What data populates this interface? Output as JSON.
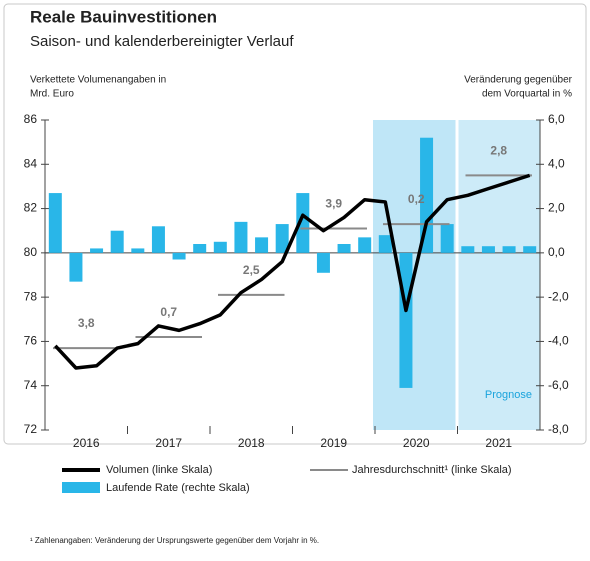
{
  "chart_data": {
    "type": "bar-line",
    "title": "Reale Bauinvestitionen",
    "subtitle": "Saison- und kalenderbereinigter Verlauf",
    "y_axis_label": [
      "Verkettete Volumenangaben in",
      "Mrd. Euro"
    ],
    "y2_axis_label": [
      "Veränderung gegenüber",
      "dem Vorquartal in %"
    ],
    "year_labels": [
      "2016",
      "2017",
      "2018",
      "2019",
      "2020",
      "2021"
    ],
    "categories": [
      null,
      null,
      null,
      null,
      null,
      null,
      null,
      null,
      null,
      null,
      null,
      null,
      null,
      null,
      null,
      null,
      null,
      null,
      null,
      null,
      null,
      null,
      null,
      null
    ],
    "ylim": [
      72,
      86
    ],
    "yticks": [
      72,
      74,
      76,
      78,
      80,
      82,
      84,
      86
    ],
    "y2lim": [
      -8,
      6
    ],
    "y2ticks": [
      {
        "value": -8,
        "label": "-8,0"
      },
      {
        "value": -6,
        "label": "-6,0"
      },
      {
        "value": -4,
        "label": "-4,0"
      },
      {
        "value": -2,
        "label": "-2,0"
      },
      {
        "value": 0,
        "label": "0,0"
      },
      {
        "value": 2,
        "label": "2,0"
      },
      {
        "value": 4,
        "label": "4,0"
      },
      {
        "value": 6,
        "label": "6,0"
      }
    ],
    "series": [
      {
        "name": "Laufende Rate (rechte Skala)",
        "color": "#29b6e8",
        "axis": "y2",
        "kind": "bar",
        "values": [
          2.7,
          -1.3,
          0.2,
          1.0,
          0.2,
          1.2,
          -0.3,
          0.4,
          0.5,
          1.4,
          0.7,
          1.3,
          2.7,
          -0.9,
          0.4,
          0.7,
          0.8,
          -6.1,
          5.2,
          1.3,
          0.3,
          0.3,
          0.3,
          0.3
        ]
      },
      {
        "name": "Volumen (linke Skala)",
        "color": "#000000",
        "axis": "y",
        "kind": "line",
        "values": [
          75.8,
          74.8,
          74.9,
          75.7,
          75.9,
          76.7,
          76.5,
          76.8,
          77.2,
          78.2,
          78.8,
          79.6,
          81.7,
          81.0,
          81.6,
          82.4,
          82.3,
          77.4,
          81.4,
          82.4,
          82.6,
          82.9,
          83.2,
          83.5
        ]
      }
    ],
    "annual_average": {
      "name": "Jahresdurchschnitt¹ (linke Skala)",
      "color": "#8a8a8a",
      "values": [
        75.7,
        76.2,
        78.1,
        81.1,
        81.3,
        83.5
      ],
      "annotations": [
        "3,8",
        "0,7",
        "2,5",
        "3,9",
        "0,2",
        "2,8"
      ]
    },
    "forecast_label": "Prognose",
    "footnote": "¹ Zahlenangaben: Veränderung der Ursprungswerte gegenüber dem Vorjahr in %."
  }
}
